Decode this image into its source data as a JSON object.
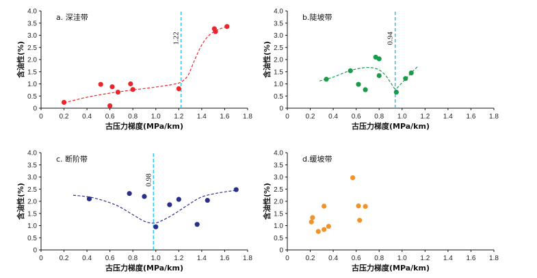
{
  "chart_data": [
    {
      "type": "scatter",
      "title": "a. 深洼带",
      "xlabel": "古压力梯度(MPa/km)",
      "ylabel": "含油性(%)",
      "xlim": [
        0,
        1.8
      ],
      "ylim": [
        0,
        4.0
      ],
      "xticks": [
        "0",
        "0.2",
        "0.4",
        "0.6",
        "0.8",
        "1.0",
        "1.2",
        "1.4",
        "1.6",
        "1.8"
      ],
      "yticks": [
        "0",
        "0.5",
        "1.0",
        "1.5",
        "2.0",
        "2.5",
        "3.0",
        "3.5",
        "4.0"
      ],
      "color": "#e8262b",
      "points": [
        [
          0.2,
          0.24
        ],
        [
          0.52,
          0.98
        ],
        [
          0.6,
          0.1
        ],
        [
          0.62,
          0.88
        ],
        [
          0.67,
          0.66
        ],
        [
          0.78,
          1.0
        ],
        [
          0.8,
          0.77
        ],
        [
          1.2,
          0.8
        ],
        [
          1.51,
          3.27
        ],
        [
          1.52,
          3.15
        ],
        [
          1.62,
          3.36
        ]
      ],
      "trend": [
        [
          0.2,
          0.22
        ],
        [
          0.4,
          0.45
        ],
        [
          0.6,
          0.62
        ],
        [
          0.8,
          0.75
        ],
        [
          1.0,
          0.87
        ],
        [
          1.15,
          0.98
        ],
        [
          1.22,
          1.08
        ],
        [
          1.28,
          1.35
        ],
        [
          1.34,
          2.0
        ],
        [
          1.4,
          2.6
        ],
        [
          1.46,
          2.98
        ],
        [
          1.52,
          3.18
        ],
        [
          1.58,
          3.3
        ],
        [
          1.63,
          3.36
        ]
      ],
      "threshold": 1.22,
      "threshold_label": "1.22"
    },
    {
      "type": "scatter",
      "title": "b.陡坡带",
      "xlabel": "古压力梯度(MPa/km)",
      "ylabel": "含油性(%)",
      "xlim": [
        0,
        1.8
      ],
      "ylim": [
        0,
        4.0
      ],
      "xticks": [
        "0",
        "0.2",
        "0.4",
        "0.6",
        "0.8",
        "1.0",
        "1.2",
        "1.4",
        "1.6",
        "1.8"
      ],
      "yticks": [
        "0",
        "0.5",
        "1.0",
        "1.5",
        "2.0",
        "2.5",
        "3.0",
        "3.5",
        "4.0"
      ],
      "color": "#1a9a4a",
      "points": [
        [
          0.34,
          1.19
        ],
        [
          0.55,
          1.54
        ],
        [
          0.62,
          0.98
        ],
        [
          0.68,
          0.76
        ],
        [
          0.77,
          2.1
        ],
        [
          0.8,
          2.03
        ],
        [
          0.8,
          1.34
        ],
        [
          0.95,
          0.66
        ],
        [
          1.03,
          1.22
        ],
        [
          1.08,
          1.45
        ]
      ],
      "trend": [
        [
          0.28,
          1.12
        ],
        [
          0.4,
          1.28
        ],
        [
          0.55,
          1.55
        ],
        [
          0.68,
          1.67
        ],
        [
          0.78,
          1.62
        ],
        [
          0.85,
          1.38
        ],
        [
          0.9,
          1.05
        ],
        [
          0.94,
          0.8
        ],
        [
          0.98,
          0.95
        ],
        [
          1.04,
          1.25
        ],
        [
          1.1,
          1.55
        ],
        [
          1.14,
          1.73
        ]
      ],
      "threshold": 0.94,
      "threshold_label": "0.94"
    },
    {
      "type": "scatter",
      "title": "c. 断阶带",
      "xlabel": "古压力梯度(MPa/km)",
      "ylabel": "含油性(%)",
      "xlim": [
        0,
        1.8
      ],
      "ylim": [
        0,
        4.0
      ],
      "xticks": [
        "0",
        "0.2",
        "0.4",
        "0.6",
        "0.8",
        "1.0",
        "1.2",
        "1.4",
        "1.6",
        "1.8"
      ],
      "yticks": [
        "0",
        "0.5",
        "1.0",
        "1.5",
        "2.0",
        "2.5",
        "3.0",
        "3.5",
        "4.0"
      ],
      "color": "#2a2f8a",
      "points": [
        [
          0.42,
          2.1
        ],
        [
          0.77,
          2.32
        ],
        [
          0.9,
          2.2
        ],
        [
          1.0,
          0.95
        ],
        [
          1.12,
          1.86
        ],
        [
          1.2,
          2.08
        ],
        [
          1.36,
          1.05
        ],
        [
          1.45,
          2.04
        ],
        [
          1.7,
          2.48
        ]
      ],
      "trend": [
        [
          0.28,
          2.25
        ],
        [
          0.45,
          2.15
        ],
        [
          0.65,
          1.85
        ],
        [
          0.8,
          1.45
        ],
        [
          0.9,
          1.18
        ],
        [
          0.98,
          1.1
        ],
        [
          1.05,
          1.2
        ],
        [
          1.15,
          1.45
        ],
        [
          1.28,
          1.85
        ],
        [
          1.4,
          2.18
        ],
        [
          1.55,
          2.35
        ],
        [
          1.7,
          2.45
        ]
      ],
      "threshold": 0.98,
      "threshold_label": "0.98"
    },
    {
      "type": "scatter",
      "title": "d.缓坡带",
      "xlabel": "古压力梯度(MPa/km)",
      "ylabel": "含油性(%)",
      "xlim": [
        0,
        1.8
      ],
      "ylim": [
        0,
        4.0
      ],
      "xticks": [
        "0",
        "0.2",
        "0.4",
        "0.6",
        "0.8",
        "1.0",
        "1.2",
        "1.4",
        "1.6",
        "1.8"
      ],
      "yticks": [
        "0",
        "0.5",
        "1.0",
        "1.5",
        "2.0",
        "2.5",
        "3.0",
        "3.5",
        "4.0"
      ],
      "color": "#f0932b",
      "points": [
        [
          0.21,
          1.15
        ],
        [
          0.22,
          1.33
        ],
        [
          0.27,
          0.76
        ],
        [
          0.32,
          0.84
        ],
        [
          0.32,
          1.8
        ],
        [
          0.36,
          0.97
        ],
        [
          0.57,
          2.97
        ],
        [
          0.62,
          1.81
        ],
        [
          0.63,
          1.22
        ],
        [
          0.68,
          1.79
        ]
      ],
      "trend": [],
      "threshold": null,
      "threshold_label": ""
    }
  ]
}
